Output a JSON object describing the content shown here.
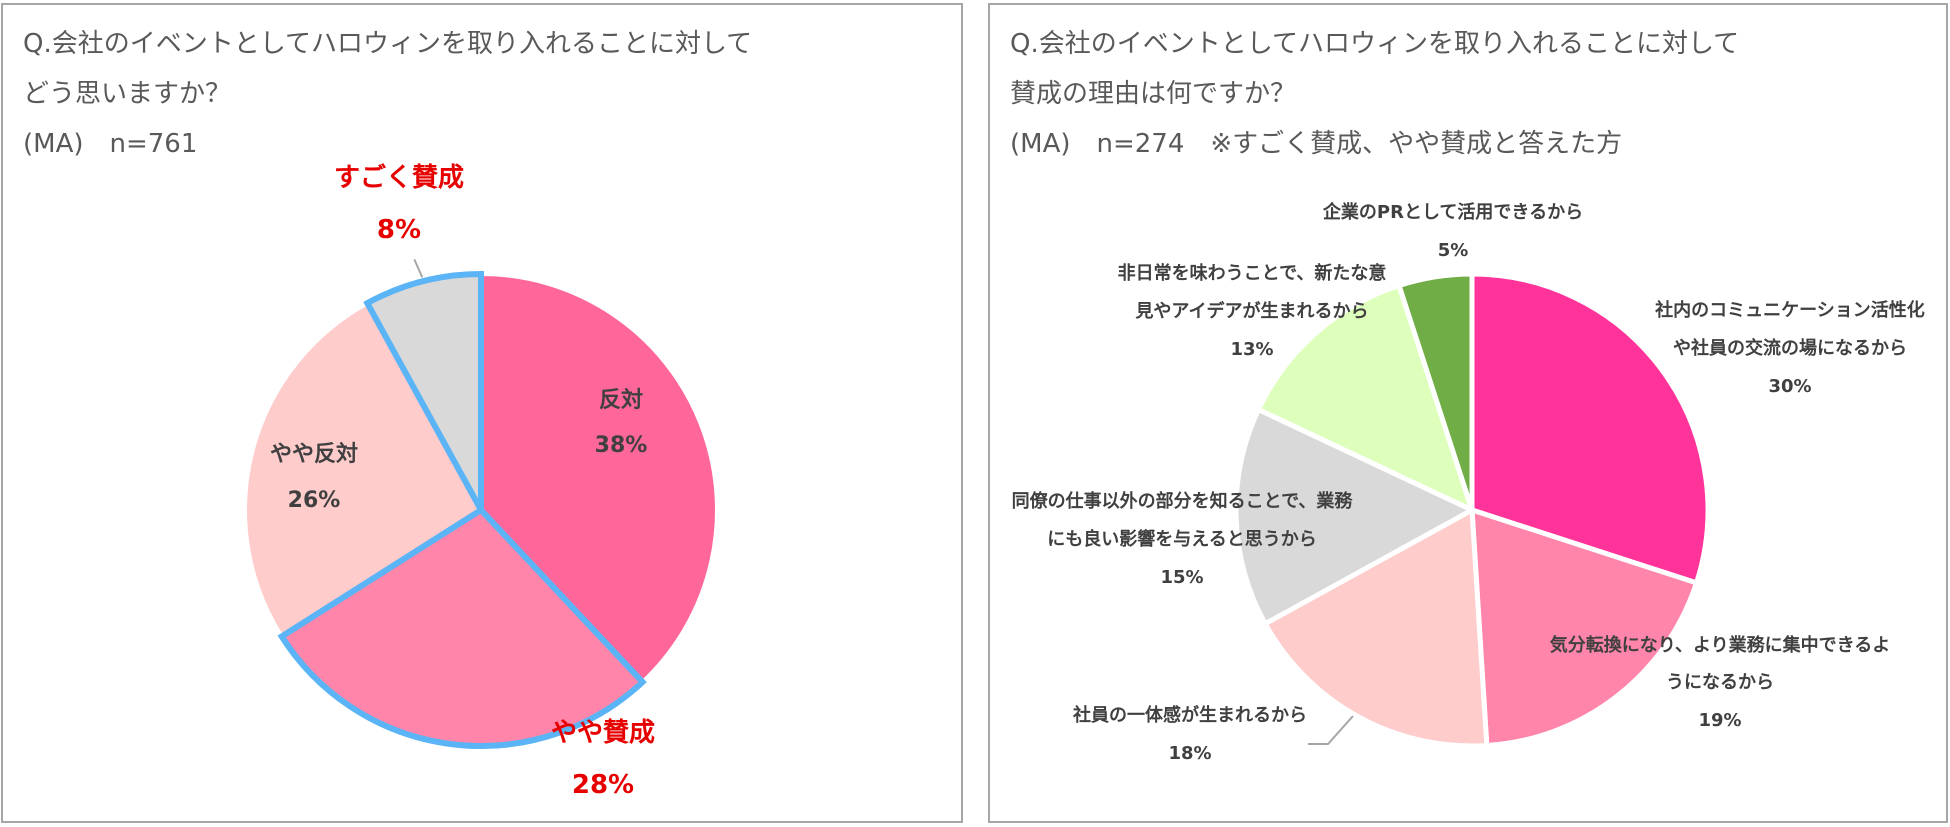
{
  "chart_data": [
    {
      "type": "pie",
      "title": "Q.会社のイベントとしてハロウィンを取り入れることに対して",
      "subtitle": "どう思いますか？",
      "note": "(MA)　n=761",
      "slices": [
        {
          "label": "反対",
          "value": 38,
          "display": "38%",
          "color": "#ff6699",
          "highlight": false,
          "label_color": "#404040"
        },
        {
          "label": "やや賛成",
          "value": 28,
          "display": "28%",
          "color": "#ff85aa",
          "highlight": true,
          "label_color": "#e60000"
        },
        {
          "label": "やや反対",
          "value": 26,
          "display": "26%",
          "color": "#ffcccc",
          "highlight": false,
          "label_color": "#404040"
        },
        {
          "label": "すごく賛成",
          "value": 8,
          "display": "8%",
          "color": "#d9d9d9",
          "highlight": true,
          "label_color": "#e60000"
        }
      ],
      "highlight_color": "#5bb4f5"
    },
    {
      "type": "pie",
      "title": "Q.会社のイベントとしてハロウィンを取り入れることに対して",
      "subtitle": "賛成の理由は何ですか？",
      "note": "(MA)　n=274　※すごく賛成、やや賛成と答えた方",
      "slices": [
        {
          "label_lines": [
            "社内のコミュニケーション活性化",
            "や社員の交流の場になるから"
          ],
          "value": 30,
          "display": "30%",
          "color": "#ff3399"
        },
        {
          "label_lines": [
            "気分転換になり、より業務に集中できるよ",
            "うになるから"
          ],
          "value": 19,
          "display": "19%",
          "color": "#ff85aa"
        },
        {
          "label_lines": [
            "社員の一体感が生まれるから"
          ],
          "value": 18,
          "display": "18%",
          "color": "#ffcccc"
        },
        {
          "label_lines": [
            "同僚の仕事以外の部分を知ることで、業務",
            "にも良い影響を与えると思うから"
          ],
          "value": 15,
          "display": "15%",
          "color": "#d9d9d9"
        },
        {
          "label_lines": [
            "非日常を味わうことで、新たな意",
            "見やアイデアが生まれるから"
          ],
          "value": 13,
          "display": "13%",
          "color": "#ddffbb"
        },
        {
          "label_lines": [
            "企業のPRとして活用できるから"
          ],
          "value": 5,
          "display": "5%",
          "color": "#70ad47"
        }
      ]
    }
  ]
}
